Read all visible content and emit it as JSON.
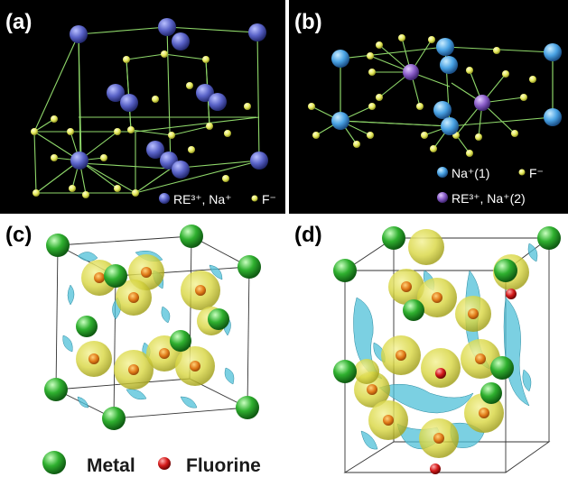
{
  "panels": {
    "a": {
      "label": "(a)",
      "legend": {
        "re_na": "RE³⁺, Na⁺",
        "f": "F⁻"
      }
    },
    "b": {
      "label": "(b)",
      "legend": {
        "na1": "Na⁺(1)",
        "f": "F⁻",
        "re_na2": "RE³⁺, Na⁺(2)"
      }
    },
    "c": {
      "label": "(c)"
    },
    "d": {
      "label": "(d)"
    }
  },
  "legend_bottom": {
    "metal": "Metal",
    "fluorine": "Fluorine"
  },
  "colors": {
    "panel_bg": "#000000",
    "bond": "#8fd86a",
    "blue_atom": "#5a63c8",
    "yellow_atom": "#e4e85a",
    "light_blue_atom": "#4aa3e4",
    "purple_atom": "#8a5ec8",
    "green_atom": "#2fb02f",
    "red_atom": "#d41a1a",
    "iso_yellow": "#d8d640",
    "iso_cyan": "#4fc0d8"
  }
}
